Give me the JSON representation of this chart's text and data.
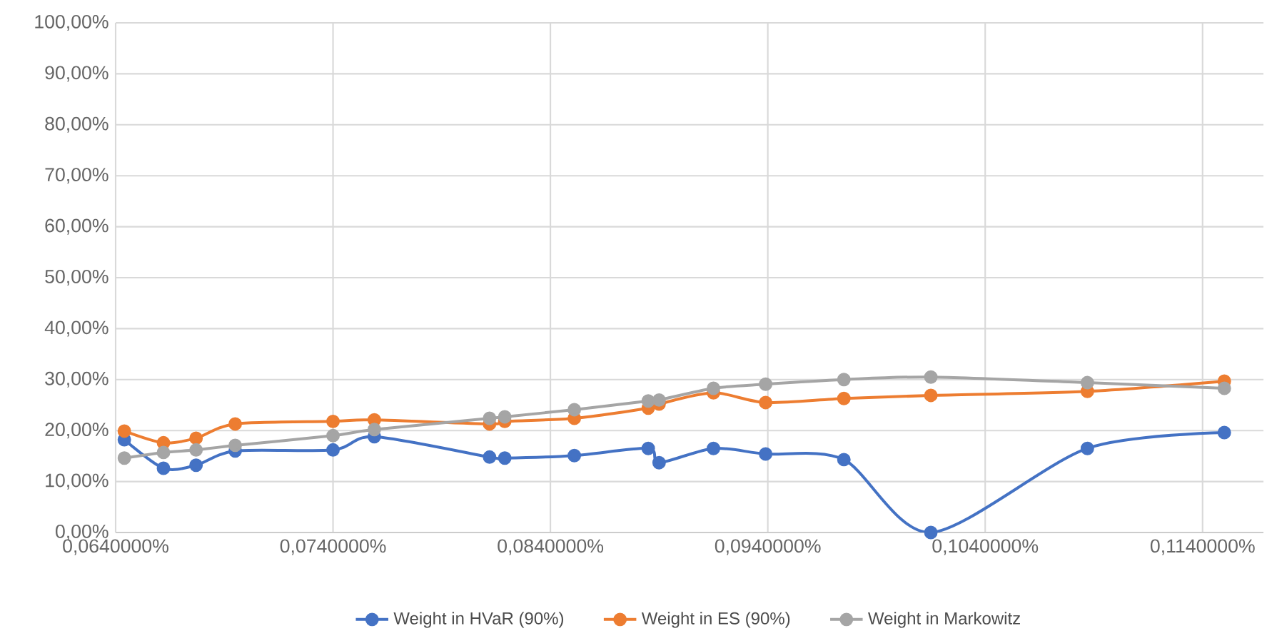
{
  "chart_data": {
    "type": "line",
    "x": [
      0.0644,
      0.0662,
      0.0677,
      0.0695,
      0.074,
      0.0759,
      0.0812,
      0.0819,
      0.0851,
      0.0885,
      0.089,
      0.0915,
      0.0939,
      0.0975,
      0.1015,
      0.1087,
      0.115
    ],
    "series": [
      {
        "name": "Weight in HVaR (90%)",
        "color": "#4472c4",
        "values": [
          18.2,
          12.6,
          13.2,
          16.0,
          16.2,
          18.8,
          14.8,
          14.6,
          15.1,
          16.5,
          13.7,
          16.5,
          15.4,
          14.3,
          0,
          16.5,
          19.6
        ]
      },
      {
        "name": "Weight in ES (90%)",
        "color": "#ed7d31",
        "values": [
          19.9,
          17.6,
          18.5,
          21.3,
          21.8,
          22.1,
          21.3,
          21.8,
          22.4,
          24.4,
          25.2,
          27.4,
          25.5,
          26.3,
          26.9,
          27.7,
          29.7
        ]
      },
      {
        "name": "Weight in Markowitz",
        "color": "#a5a5a5",
        "values": [
          14.6,
          15.7,
          16.2,
          17.1,
          19.0,
          20.2,
          22.4,
          22.7,
          24.1,
          25.8,
          26.0,
          28.3,
          29.1,
          30.0,
          30.5,
          29.4,
          28.3
        ]
      }
    ],
    "xlim": [
      0.064,
      0.1168
    ],
    "xticks": [
      {
        "value": 0.064,
        "label": "0,0640000%"
      },
      {
        "value": 0.074,
        "label": "0,0740000%"
      },
      {
        "value": 0.084,
        "label": "0,0840000%"
      },
      {
        "value": 0.094,
        "label": "0,0940000%"
      },
      {
        "value": 0.104,
        "label": "0,1040000%"
      },
      {
        "value": 0.114,
        "label": "0,1140000%"
      }
    ],
    "ylim": [
      0,
      100
    ],
    "yticks": [
      {
        "value": 0,
        "label": "0,00%"
      },
      {
        "value": 10,
        "label": "10,00%"
      },
      {
        "value": 20,
        "label": "20,00%"
      },
      {
        "value": 30,
        "label": "30,00%"
      },
      {
        "value": 40,
        "label": "40,00%"
      },
      {
        "value": 50,
        "label": "50,00%"
      },
      {
        "value": 60,
        "label": "60,00%"
      },
      {
        "value": 70,
        "label": "70,00%"
      },
      {
        "value": 80,
        "label": "80,00%"
      },
      {
        "value": 90,
        "label": "90,00%"
      },
      {
        "value": 100,
        "label": "100,00%"
      }
    ],
    "grid": true,
    "legend": "bottom",
    "marker": "circle",
    "line_style": "solid"
  }
}
